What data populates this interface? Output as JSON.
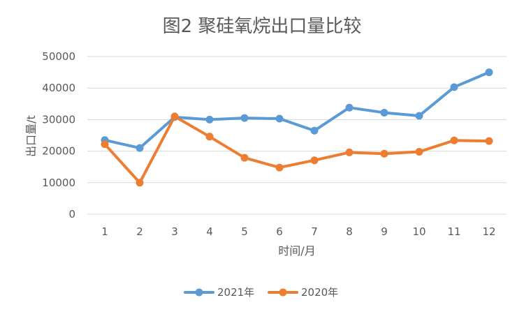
{
  "chart_data": {
    "type": "line",
    "title": "图2  聚硅氧烷出口量比较",
    "xlabel": "时间/月",
    "ylabel": "出口量/t",
    "categories": [
      "1",
      "2",
      "3",
      "4",
      "5",
      "6",
      "7",
      "8",
      "9",
      "10",
      "11",
      "12"
    ],
    "ylim": [
      0,
      50000
    ],
    "yticks": [
      "0",
      "10000",
      "20000",
      "30000",
      "40000",
      "50000"
    ],
    "grid": true,
    "legend_position": "bottom",
    "series": [
      {
        "name": "2021年",
        "color": "#5b9bd5",
        "values": [
          23500,
          21000,
          30800,
          30000,
          30500,
          30300,
          26500,
          33800,
          32200,
          31200,
          40300,
          45000
        ]
      },
      {
        "name": "2020年",
        "color": "#ed7d31",
        "values": [
          22200,
          10000,
          31000,
          24600,
          17900,
          14800,
          17100,
          19600,
          19200,
          19800,
          23400,
          23200
        ]
      }
    ]
  }
}
